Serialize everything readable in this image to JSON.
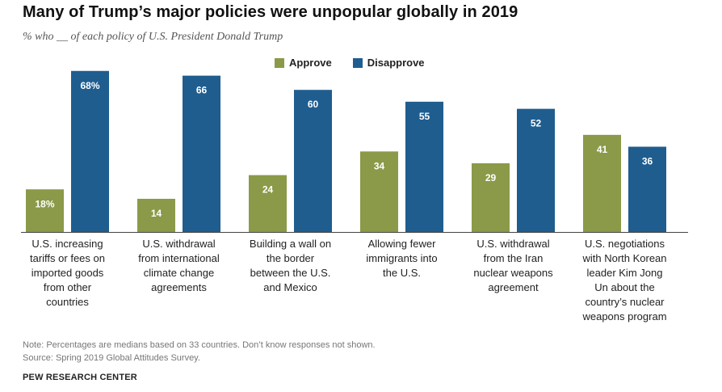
{
  "header": {
    "title": "Many of Trump’s major policies were unpopular globally in 2019",
    "subtitle": "% who __ of each policy of U.S. President Donald Trump"
  },
  "footer": {
    "note": "Note: Percentages are medians based on 33 countries. Don’t know responses not shown.",
    "source": "Source: Spring 2019 Global Attitudes Survey.",
    "org": "PEW RESEARCH CENTER"
  },
  "colors": {
    "approve": "#8a9a48",
    "disapprove": "#1f5d8f",
    "baseline": "#444444"
  },
  "chart_data": {
    "type": "bar",
    "title": "Many of Trump’s major policies were unpopular globally in 2019",
    "subtitle": "% who __ of each policy of U.S. President Donald Trump",
    "xlabel": "",
    "ylabel": "",
    "ylim": [
      0,
      70
    ],
    "grid": false,
    "legend_position": "top-center",
    "categories": [
      [
        "U.S. increasing",
        "tariffs or fees on",
        "imported goods",
        "from other",
        "countries"
      ],
      [
        "U.S. withdrawal",
        "from international",
        "climate change",
        "agreements"
      ],
      [
        "Building a wall on",
        "the border",
        "between the U.S.",
        "and Mexico"
      ],
      [
        "Allowing fewer",
        "immigrants into",
        "the U.S."
      ],
      [
        "U.S. withdrawal",
        "from the Iran",
        "nuclear weapons",
        "agreement"
      ],
      [
        "U.S. negotiations",
        "with North Korean",
        "leader Kim Jong",
        "Un about the",
        "country’s nuclear",
        "weapons program"
      ]
    ],
    "series": [
      {
        "name": "Approve",
        "values": [
          18,
          14,
          24,
          34,
          29,
          41
        ],
        "labels": [
          "18%",
          "14",
          "24",
          "34",
          "29",
          "41"
        ]
      },
      {
        "name": "Disapprove",
        "values": [
          68,
          66,
          60,
          55,
          52,
          36
        ],
        "labels": [
          "68%",
          "66",
          "60",
          "55",
          "52",
          "36"
        ]
      }
    ]
  }
}
